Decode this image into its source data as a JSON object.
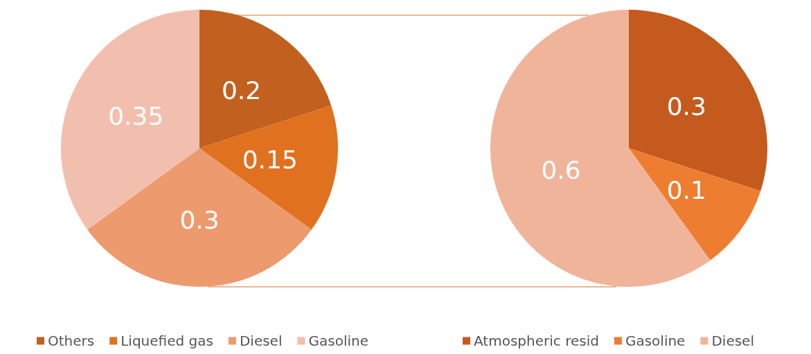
{
  "chart_data": [
    {
      "type": "pie",
      "categories": [
        "Others",
        "Liquefied gas",
        "Diesel",
        "Gasoline"
      ],
      "values": [
        0.2,
        0.15,
        0.3,
        0.35
      ],
      "colors": [
        "#c2601f",
        "#e0711f",
        "#ec9a6e",
        "#f2bfae"
      ],
      "data_labels": true,
      "legend": "bottom"
    },
    {
      "type": "pie",
      "categories": [
        "Atmospheric resid",
        "Gasoline",
        "Diesel"
      ],
      "values": [
        0.3,
        0.1,
        0.6
      ],
      "colors": [
        "#c55a1e",
        "#ed7d31",
        "#f0b49a"
      ],
      "data_labels": true,
      "legend": "bottom"
    }
  ]
}
